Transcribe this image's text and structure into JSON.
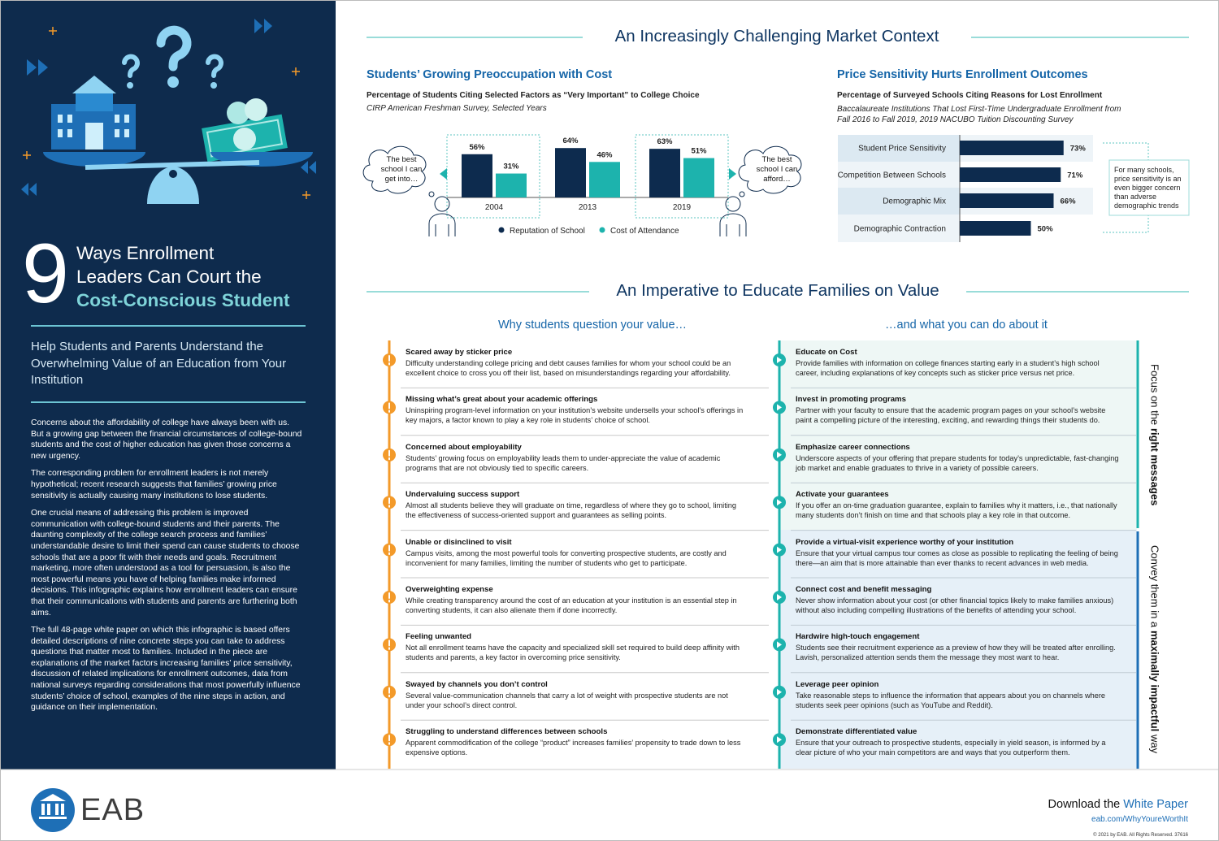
{
  "sidebar": {
    "number": "9",
    "title_lines": [
      "Ways Enrollment",
      "Leaders Can Court the"
    ],
    "title_highlight": "Cost-Conscious Student",
    "subtitle": "Help Students and Parents Understand the Overwhelming Value of an Education from Your Institution",
    "paragraphs": [
      "Concerns about the affordability of college have always been with us. But a growing gap between the financial circumstances of college-bound students and the cost of higher education has given those concerns a new urgency.",
      "The corresponding problem for enrollment leaders is not merely hypothetical; recent research suggests that families’ growing price sensitivity is actually causing many institutions to lose students.",
      "One crucial means of addressing this problem is improved communication with college-bound students and their parents. The daunting complexity of the college search process and families’ understandable desire to limit their spend can cause students to choose schools that are a poor fit with their needs and goals. Recruitment marketing, more often understood as a tool for persuasion, is also the most powerful means you have of helping families make informed decisions. This infographic explains how enrollment leaders can ensure that their communications with students and parents are furthering both aims.",
      "The full 48-page white paper on which this infographic is based offers detailed descriptions of nine concrete steps you can take to address questions that matter most to families. Included in the piece are explanations of the market factors increasing families’ price sensitivity, discussion of related implications for enrollment outcomes, data from national surveys regarding considerations that most powerfully influence students’ choice of school, examples of the nine steps in action, and guidance on their implementation."
    ]
  },
  "section1_title": "An Increasingly Challenging Market Context",
  "chart_data": [
    {
      "type": "bar",
      "title": "Students’ Growing Preoccupation with Cost",
      "subtitle": "Percentage of Students Citing Selected Factors as “Very Important” to College Choice",
      "source": "CIRP American Freshman Survey, Selected Years",
      "annotations": [
        "The best school I can get into…",
        "The best school I can afford…"
      ],
      "categories": [
        "2004",
        "2013",
        "2019"
      ],
      "ylim": [
        0,
        100
      ],
      "series": [
        {
          "name": "Reputation of School",
          "color": "#0d2b4e",
          "values": [
            56,
            64,
            63
          ],
          "value_labels": [
            "56%",
            "64%",
            "63%"
          ]
        },
        {
          "name": "Cost of Attendance",
          "color": "#1db3ad",
          "values": [
            31,
            46,
            51
          ],
          "value_labels": [
            "31%",
            "46%",
            "51%"
          ]
        }
      ]
    },
    {
      "type": "barh",
      "title": "Price Sensitivity Hurts Enrollment Outcomes",
      "subtitle": "Percentage of Surveyed Schools Citing Reasons for Lost Enrollment",
      "source": "Baccalaureate Institutions That Lost First-Time Undergraduate Enrollment from Fall 2016 to Fall 2019, 2019 NACUBO Tuition Discounting Survey",
      "note": "For many schools, price sensitivity is an even bigger concern than adverse demographic trends",
      "categories": [
        "Student Price Sensitivity",
        "Competition Between Schools",
        "Demographic Mix",
        "Demographic Contraction"
      ],
      "values": [
        73,
        71,
        66,
        50
      ],
      "value_labels": [
        "73%",
        "71%",
        "66%",
        "50%"
      ],
      "xlim": [
        0,
        100
      ],
      "color": "#0d2b4e"
    }
  ],
  "section2": {
    "title": "An Imperative to Educate Families on Value",
    "left_header": "Why students question your value…",
    "right_header": "…and what you can do about it",
    "rows": [
      {
        "problem": "Scared away by sticker price",
        "problem_text": "Difficulty understanding college pricing and debt causes families for whom your school could be an excellent choice to cross you off their list, based on misunderstandings regarding your affordability.",
        "solution": "Educate on Cost",
        "solution_text": "Provide families with information on college finances starting early in a student’s high school career, including explanations of key concepts such as sticker price versus net price."
      },
      {
        "problem": "Missing what’s great about your academic offerings",
        "problem_text": "Uninspiring program-level information on your institution’s website undersells your school’s offerings in key majors, a factor known to play a key role in students’ choice of school.",
        "solution": "Invest in promoting programs",
        "solution_text": "Partner with your faculty to ensure that the academic program pages on your school’s website paint a compelling picture of the interesting, exciting, and rewarding things their students do."
      },
      {
        "problem": "Concerned about employability",
        "problem_text": "Students’ growing focus on employability leads them to under-appreciate the value of academic programs that are not obviously tied to specific careers.",
        "solution": "Emphasize career connections",
        "solution_text": "Underscore aspects of your offering that prepare students for today’s unpredictable, fast-changing job market and enable graduates to thrive in a variety of possible careers."
      },
      {
        "problem": "Undervaluing success support",
        "problem_text": "Almost all students believe they will graduate on time, regardless of where they go to school, limiting the effectiveness of success-oriented support and guarantees as selling points.",
        "solution": "Activate your guarantees",
        "solution_text": "If you offer an on-time graduation guarantee, explain to families why it matters, i.e., that nationally many students don’t finish on time and that schools play a key role in that outcome."
      },
      {
        "problem": "Unable or disinclined to visit",
        "problem_text": "Campus visits, among the most powerful tools for converting prospective students, are costly and inconvenient for many families, limiting the number of students who get to participate.",
        "solution": "Provide a virtual-visit experience worthy of your institution",
        "solution_text": "Ensure that your virtual campus tour comes as close as possible to replicating the feeling of being there—an aim that is more attainable than ever thanks to recent advances in web media."
      },
      {
        "problem": "Overweighting expense",
        "problem_text": "While creating transparency around the cost of an education at your institution is an essential step in converting students, it can also alienate them if done incorrectly.",
        "solution": "Connect cost and benefit messaging",
        "solution_text": "Never show information about your cost (or other financial topics likely to make families anxious) without also including compelling illustrations of the benefits of attending your school."
      },
      {
        "problem": "Feeling unwanted",
        "problem_text": "Not all enrollment teams have the capacity and specialized skill set required to build deep affinity with students and parents, a key factor in overcoming price sensitivity.",
        "solution": "Hardwire high-touch engagement",
        "solution_text": "Students see their recruitment experience as a preview of how they will be treated after enrolling. Lavish, personalized attention sends them the message they most want to hear."
      },
      {
        "problem": "Swayed by channels you don’t control",
        "problem_text": "Several value-communication channels that carry a lot of weight with prospective students are not under your school’s direct control.",
        "solution": "Leverage peer opinion",
        "solution_text": "Take reasonable steps to influence the information that appears about you on channels where students seek peer opinions (such as YouTube and Reddit)."
      },
      {
        "problem": "Struggling to understand differences between schools",
        "problem_text": "Apparent commodification of the college “product” increases families’ propensity to trade down to less expensive options.",
        "solution": "Demonstrate differentiated value",
        "solution_text": "Ensure that your outreach to prospective students, especially in yield season, is informed by a clear picture of who your main competitors are and ways that you outperform them."
      }
    ],
    "side_labels": [
      {
        "text": "Focus on the",
        "emphasis": "right messages"
      },
      {
        "text": "Convey them in a",
        "emphasis": "maximally impactful",
        "tail": "way"
      }
    ]
  },
  "footer": {
    "brand": "EAB",
    "download": "Download the",
    "download_link": "White Paper",
    "url": "eab.com/WhyYoureWorthIt",
    "copyright": "© 2021 by EAB. All Rights Reserved. 37616"
  }
}
